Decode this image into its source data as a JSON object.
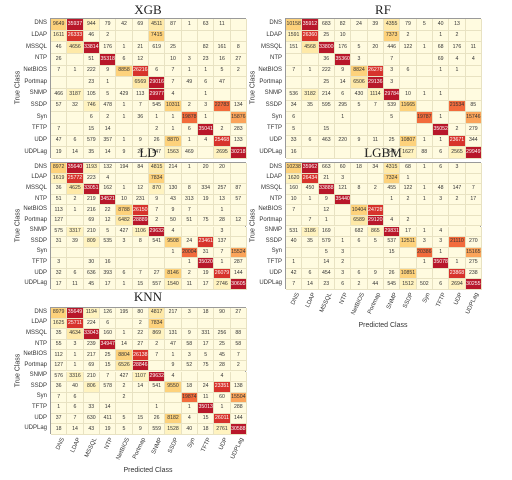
{
  "chart_data": [
    {
      "type": "heatmap",
      "title": "XGB",
      "ylabel": "True Class",
      "xlabel": "",
      "categories": [
        "DNS",
        "LDAP",
        "MSSQL",
        "NTP",
        "NetBIOS",
        "Portmap",
        "SNMP",
        "SSDP",
        "Syn",
        "TFTP",
        "UDP",
        "UDPLag"
      ],
      "values": [
        [
          "9649",
          "35937",
          "944",
          "79",
          "42",
          "69",
          "4511",
          "87",
          "1",
          "63",
          "11",
          ""
        ],
        [
          "1611",
          "26333",
          "46",
          "2",
          "",
          "",
          "7415",
          "",
          "",
          "",
          "",
          ""
        ],
        [
          "46",
          "4656",
          "33814",
          "176",
          "1",
          "21",
          "619",
          "25",
          "",
          "82",
          "161",
          "8"
        ],
        [
          "26",
          "",
          "51",
          "35318",
          "6",
          "12",
          "",
          "10",
          "3",
          "23",
          "16",
          "27"
        ],
        [
          "7",
          "1",
          "222",
          "9",
          "8858",
          "26216",
          "6",
          "7",
          "1",
          "1",
          "5",
          "2"
        ],
        [
          "",
          "",
          "23",
          "1",
          "",
          "6569",
          "29016",
          "7",
          "49",
          "6",
          "47",
          ""
        ],
        [
          "466",
          "3187",
          "105",
          "5",
          "429",
          "113",
          "29977",
          "4",
          "",
          "1",
          "",
          ""
        ],
        [
          "57",
          "32",
          "746",
          "478",
          "1",
          "7",
          "545",
          "10311",
          "2",
          "3",
          "22783",
          "134"
        ],
        [
          "",
          "",
          "6",
          "2",
          "1",
          "36",
          "1",
          "1",
          "19878",
          "1",
          "",
          "15876"
        ],
        [
          "7",
          "",
          "15",
          "14",
          "",
          "",
          "2",
          "1",
          "6",
          "35041",
          "2",
          "283"
        ],
        [
          "47",
          "6",
          "579",
          "357",
          "1",
          "9",
          "26",
          "8870",
          "1",
          "4",
          "25468",
          "133"
        ],
        [
          "19",
          "14",
          "35",
          "14",
          "9",
          "26",
          "547",
          "1563",
          "469",
          "",
          "2695",
          "30218"
        ]
      ]
    },
    {
      "type": "heatmap",
      "title": "RF",
      "ylabel": "True Class",
      "xlabel": "",
      "categories": [
        "DNS",
        "LDAP",
        "MSSQL",
        "NTP",
        "NetBIOS",
        "Portmap",
        "SNMP",
        "SSDP",
        "Syn",
        "TFTP",
        "UDP",
        "UDPLag"
      ],
      "values": [
        [
          "10158",
          "35912",
          "683",
          "82",
          "24",
          "39",
          "4355",
          "79",
          "5",
          "40",
          "13",
          ""
        ],
        [
          "1591",
          "26360",
          "25",
          "10",
          "",
          "",
          "7373",
          "2",
          "",
          "1",
          "2",
          ""
        ],
        [
          "151",
          "4568",
          "33800",
          "176",
          "5",
          "20",
          "446",
          "122",
          "1",
          "68",
          "176",
          "11"
        ],
        [
          "",
          "",
          "36",
          "35360",
          "3",
          "",
          "7",
          "",
          "",
          "69",
          "4",
          "4"
        ],
        [
          "7",
          "1",
          "222",
          "9",
          "8824",
          "26278",
          "3",
          "6",
          "",
          "1",
          "1",
          ""
        ],
        [
          "",
          "",
          "25",
          "14",
          "6506",
          "29136",
          "3",
          "",
          "",
          "",
          "",
          ""
        ],
        [
          "536",
          "3182",
          "214",
          "6",
          "430",
          "1114",
          "29784",
          "10",
          "1",
          "1",
          "",
          ""
        ],
        [
          "34",
          "35",
          "595",
          "295",
          "5",
          "7",
          "539",
          "11665",
          "",
          "",
          "21534",
          "85"
        ],
        [
          "6",
          "",
          "",
          "1",
          "",
          "",
          "5",
          "",
          "19787",
          "1",
          "",
          "15746"
        ],
        [
          "5",
          "",
          "15",
          "",
          "",
          "",
          "",
          "",
          "",
          "35052",
          "2",
          "279"
        ],
        [
          "33",
          "6",
          "463",
          "220",
          "9",
          "11",
          "25",
          "10807",
          "1",
          "1",
          "23671",
          "344"
        ],
        [
          "16",
          "",
          "",
          "",
          "",
          "",
          "545",
          "1627",
          "88",
          "6",
          "2565",
          "29949"
        ]
      ]
    },
    {
      "type": "heatmap",
      "title": "LD",
      "ylabel": "True Class",
      "xlabel": "",
      "categories": [
        "DNS",
        "LDAP",
        "MSSQL",
        "NTP",
        "NetBIOS",
        "Portmap",
        "SNMP",
        "SSDP",
        "Syn",
        "TFTP",
        "UDP",
        "UDPLag"
      ],
      "values": [
        [
          "8972",
          "35640",
          "1193",
          "132",
          "194",
          "84",
          "4815",
          "214",
          "1",
          "20",
          "20",
          ""
        ],
        [
          "1619",
          "25772",
          "223",
          "4",
          "",
          "",
          "7834",
          "",
          "",
          "",
          "",
          ""
        ],
        [
          "36",
          "4625",
          "33051",
          "162",
          "1",
          "12",
          "870",
          "130",
          "8",
          "334",
          "257",
          "87"
        ],
        [
          "51",
          "2",
          "219",
          "34521",
          "10",
          "231",
          "9",
          "43",
          "313",
          "19",
          "13",
          "57"
        ],
        [
          "113",
          "1",
          "216",
          "22",
          "8788",
          "26150",
          "7",
          "9",
          "7",
          "",
          "1",
          ""
        ],
        [
          "127",
          "",
          "69",
          "12",
          "6482",
          "28889",
          "2",
          "50",
          "51",
          "75",
          "28",
          "12"
        ],
        [
          "575",
          "3317",
          "210",
          "5",
          "427",
          "1106",
          "29632",
          "4",
          "",
          "",
          "3",
          ""
        ],
        [
          "31",
          "39",
          "809",
          "535",
          "3",
          "8",
          "541",
          "9508",
          "24",
          "23461",
          "137",
          ""
        ],
        [
          "",
          "",
          "",
          "",
          "",
          "",
          "",
          "1",
          "20004",
          "31",
          "7",
          "15524"
        ],
        [
          "3",
          "",
          "30",
          "16",
          "",
          "",
          "",
          "",
          "1",
          "35020",
          "1",
          "287"
        ],
        [
          "32",
          "6",
          "636",
          "393",
          "6",
          "7",
          "27",
          "8146",
          "2",
          "19",
          "26079",
          "144"
        ],
        [
          "17",
          "11",
          "45",
          "17",
          "1",
          "15",
          "557",
          "1540",
          "11",
          "17",
          "2746",
          "30605"
        ]
      ]
    },
    {
      "type": "heatmap",
      "title": "LGBM",
      "ylabel": "True Class",
      "xlabel": "Predicted Class",
      "categories": [
        "DNS",
        "LDAP",
        "MSSQL",
        "NTP",
        "NetBIOS",
        "Portmap",
        "SNMP",
        "SSDP",
        "Syn",
        "TFTP",
        "UDP",
        "UDPLag"
      ],
      "values": [
        [
          "10238",
          "35962",
          "663",
          "60",
          "18",
          "34",
          "4315",
          "68",
          "1",
          "6",
          "3",
          ""
        ],
        [
          "1620",
          "26434",
          "21",
          "3",
          "",
          "",
          "7324",
          "1",
          "",
          "",
          "",
          ""
        ],
        [
          "160",
          "450",
          "33888",
          "121",
          "8",
          "2",
          "455",
          "122",
          "1",
          "48",
          "147",
          "7"
        ],
        [
          "10",
          "1",
          "9",
          "35440",
          "",
          "",
          "1",
          "2",
          "1",
          "3",
          "2",
          "17"
        ],
        [
          "7",
          "",
          "12",
          "",
          "10404",
          "24728",
          "",
          "",
          "",
          "",
          "",
          ""
        ],
        [
          "",
          "7",
          "1",
          "",
          "6589",
          "29120",
          "4",
          "2",
          "",
          "",
          "",
          ""
        ],
        [
          "531",
          "3186",
          "169",
          "",
          "682",
          "865",
          "29831",
          "17",
          "1",
          "4",
          "",
          ""
        ],
        [
          "40",
          "35",
          "579",
          "1",
          "6",
          "5",
          "537",
          "12511",
          "3",
          "3",
          "21110",
          "270"
        ],
        [
          "",
          "",
          "5",
          "3",
          "",
          "",
          "15",
          "",
          "20386",
          "1",
          "",
          "15165"
        ],
        [
          "1",
          "",
          "14",
          "2",
          "",
          "",
          "",
          "",
          "1",
          "35078",
          "1",
          "275"
        ],
        [
          "42",
          "6",
          "454",
          "3",
          "6",
          "9",
          "26",
          "10851",
          "",
          "",
          "23868",
          "238"
        ],
        [
          "7",
          "14",
          "23",
          "6",
          "2",
          "44",
          "545",
          "1512",
          "502",
          "6",
          "2694",
          "30255"
        ]
      ]
    },
    {
      "type": "heatmap",
      "title": "KNN",
      "ylabel": "True Class",
      "xlabel": "Predicted Class",
      "categories": [
        "DNS",
        "LDAP",
        "MSSQL",
        "NTP",
        "NetBIOS",
        "Portmap",
        "SNMP",
        "SSDP",
        "Syn",
        "TFTP",
        "UDP",
        "UDPLag"
      ],
      "values": [
        [
          "8979",
          "35649",
          "1194",
          "126",
          "195",
          "80",
          "4817",
          "217",
          "3",
          "18",
          "90",
          "27"
        ],
        [
          "1625",
          "25711",
          "224",
          "6",
          "",
          "2",
          "7834",
          "",
          "",
          "",
          "",
          ""
        ],
        [
          "35",
          "4634",
          "33043",
          "160",
          "1",
          "22",
          "869",
          "131",
          "9",
          "331",
          "256",
          "88"
        ],
        [
          "55",
          "3",
          "239",
          "34947",
          "14",
          "27",
          "2",
          "47",
          "58",
          "17",
          "25",
          "58"
        ],
        [
          "112",
          "1",
          "217",
          "25",
          "8804",
          "26138",
          "7",
          "1",
          "3",
          "5",
          "45",
          "7"
        ],
        [
          "127",
          "1",
          "69",
          "15",
          "6526",
          "28846",
          "",
          "9",
          "52",
          "75",
          "28",
          "2"
        ],
        [
          "576",
          "3316",
          "210",
          "7",
          "427",
          "1107",
          "29632",
          "4",
          "",
          "",
          "4",
          ""
        ],
        [
          "36",
          "40",
          "806",
          "578",
          "2",
          "14",
          "541",
          "9550",
          "18",
          "24",
          "23351",
          "138"
        ],
        [
          "7",
          "6",
          "",
          "",
          "2",
          "",
          "",
          "",
          "19874",
          "11",
          "60",
          "15504"
        ],
        [
          "1",
          "6",
          "33",
          "14",
          "",
          "",
          "1",
          "",
          "1",
          "35013",
          "1",
          "288"
        ],
        [
          "37",
          "7",
          "630",
          "411",
          "5",
          "15",
          "26",
          "8182",
          "4",
          "15",
          "26011",
          "144"
        ],
        [
          "18",
          "14",
          "43",
          "19",
          "5",
          "9",
          "559",
          "1528",
          "40",
          "18",
          "2761",
          "30588"
        ]
      ]
    }
  ]
}
